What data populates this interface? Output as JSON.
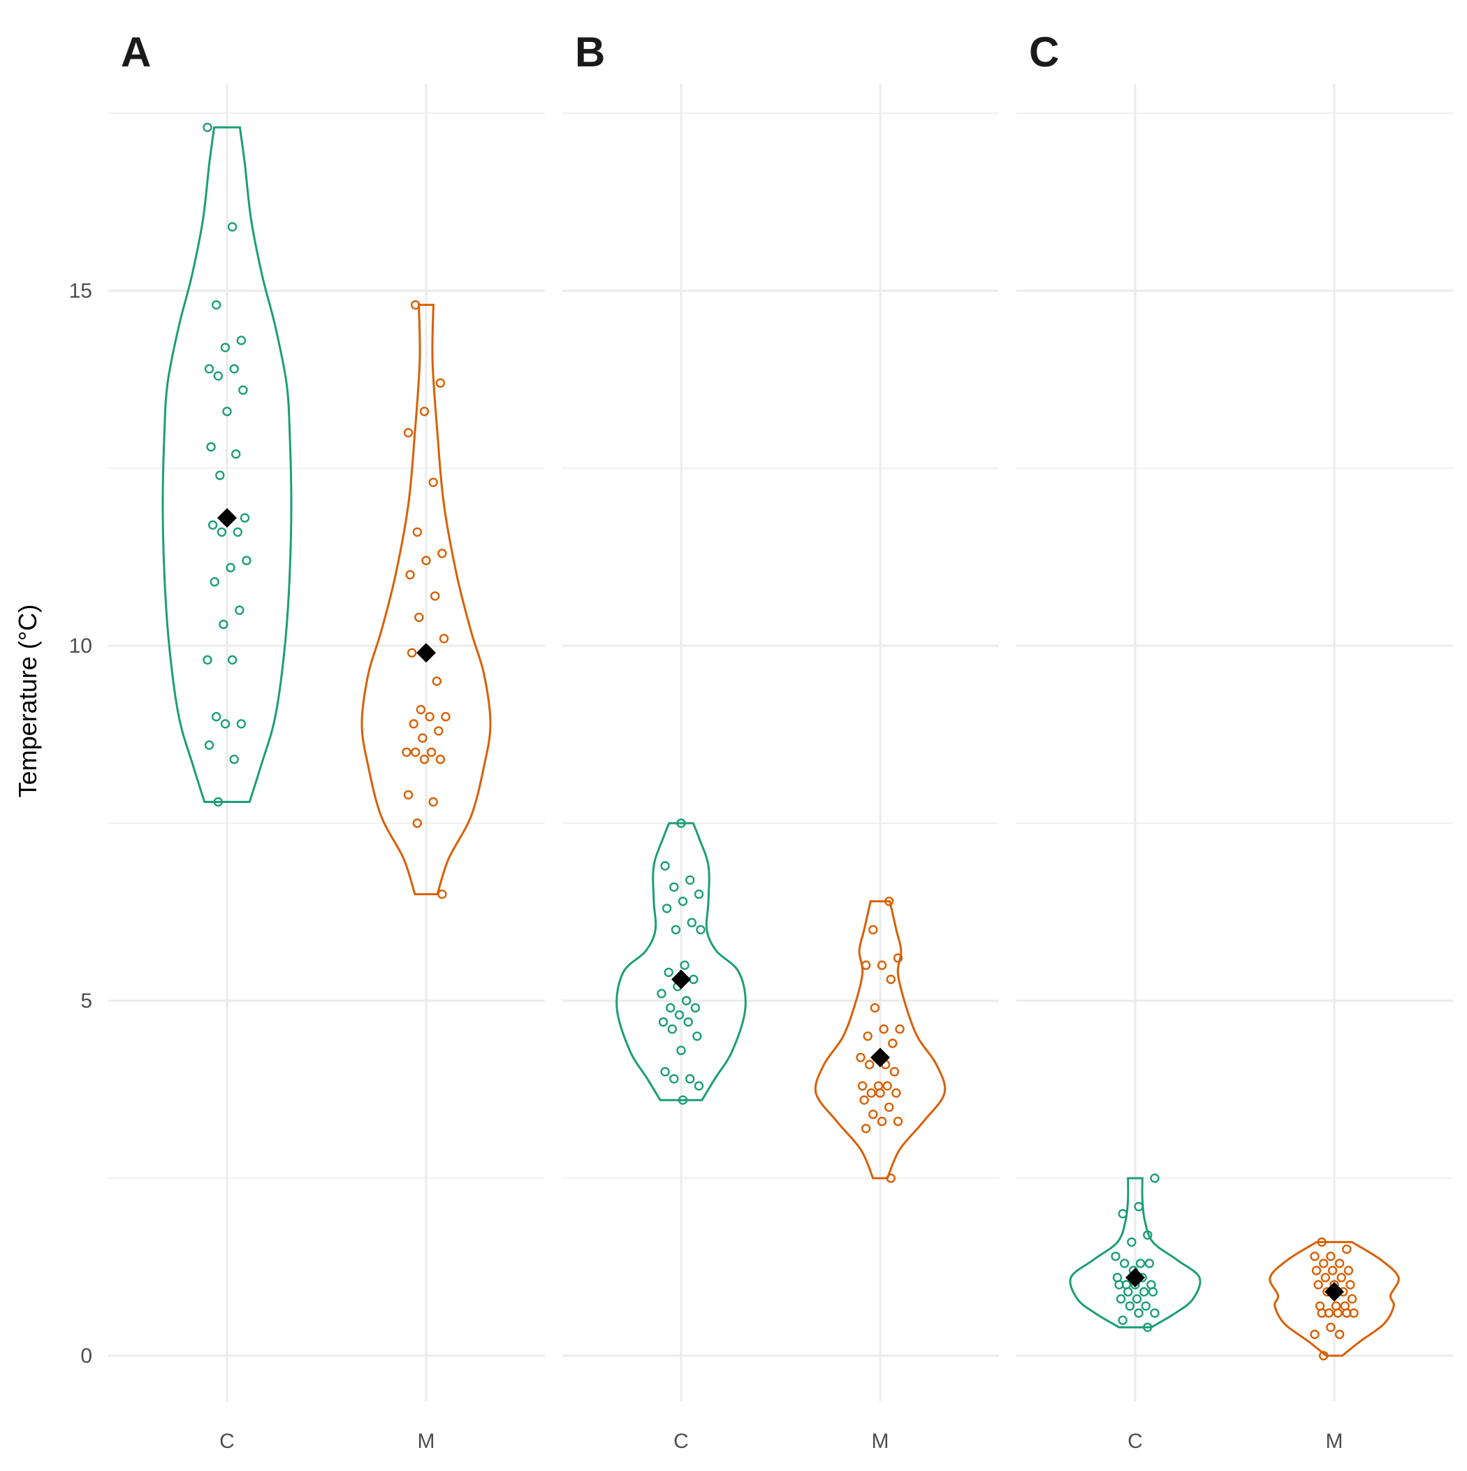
{
  "chart_data": {
    "type": "violin",
    "ylabel": "Temperature (°C)",
    "ylim": [
      -1.3,
      17.8
    ],
    "y_ticks": [
      0,
      5,
      10,
      15
    ],
    "grid": true,
    "legend": "none",
    "colors": {
      "C": "#1b9e77",
      "M": "#d95f02",
      "mean_marker": "#000000",
      "grid": "#ebebeb"
    },
    "panels": [
      {
        "tag": "A",
        "categories": [
          "C",
          "M"
        ],
        "series": [
          {
            "name": "C",
            "mean": 11.8,
            "points": [
              17.3,
              15.9,
              14.8,
              14.3,
              14.2,
              13.9,
              13.9,
              13.8,
              13.6,
              13.3,
              12.8,
              12.7,
              12.4,
              11.8,
              11.8,
              11.7,
              11.6,
              11.6,
              11.2,
              11.1,
              10.9,
              10.5,
              10.3,
              9.8,
              9.8,
              9.0,
              8.9,
              8.9,
              8.6,
              8.4,
              7.8
            ],
            "violin": [
              [
                7.8,
                0.28
              ],
              [
                8.3,
                0.42
              ],
              [
                9.0,
                0.6
              ],
              [
                10.0,
                0.72
              ],
              [
                11.0,
                0.78
              ],
              [
                12.0,
                0.8
              ],
              [
                13.0,
                0.78
              ],
              [
                13.7,
                0.74
              ],
              [
                14.5,
                0.6
              ],
              [
                15.2,
                0.44
              ],
              [
                16.0,
                0.3
              ],
              [
                16.8,
                0.22
              ],
              [
                17.3,
                0.16
              ]
            ]
          },
          {
            "name": "M",
            "mean": 9.9,
            "points": [
              14.8,
              13.7,
              13.3,
              13.0,
              12.3,
              11.6,
              11.3,
              11.2,
              11.0,
              10.7,
              10.4,
              10.1,
              9.9,
              9.9,
              9.5,
              9.1,
              9.0,
              9.0,
              8.9,
              8.8,
              8.7,
              8.5,
              8.5,
              8.5,
              8.4,
              8.4,
              7.9,
              7.8,
              7.5,
              6.5
            ],
            "violin": [
              [
                6.5,
                0.14
              ],
              [
                7.0,
                0.28
              ],
              [
                7.6,
                0.56
              ],
              [
                8.3,
                0.72
              ],
              [
                8.9,
                0.8
              ],
              [
                9.6,
                0.72
              ],
              [
                10.2,
                0.56
              ],
              [
                11.0,
                0.38
              ],
              [
                12.0,
                0.22
              ],
              [
                13.0,
                0.14
              ],
              [
                14.0,
                0.08
              ],
              [
                14.8,
                0.09
              ]
            ]
          }
        ]
      },
      {
        "tag": "B",
        "categories": [
          "C",
          "M"
        ],
        "series": [
          {
            "name": "C",
            "mean": 5.3,
            "points": [
              7.5,
              6.9,
              6.7,
              6.6,
              6.5,
              6.4,
              6.3,
              6.1,
              6.0,
              6.0,
              5.5,
              5.4,
              5.3,
              5.2,
              5.1,
              5.0,
              4.9,
              4.9,
              4.8,
              4.7,
              4.7,
              4.6,
              4.5,
              4.3,
              4.0,
              3.9,
              3.9,
              3.8,
              3.6
            ],
            "violin": [
              [
                3.6,
                0.26
              ],
              [
                3.9,
                0.42
              ],
              [
                4.3,
                0.64
              ],
              [
                4.9,
                0.8
              ],
              [
                5.4,
                0.72
              ],
              [
                5.7,
                0.44
              ],
              [
                6.0,
                0.32
              ],
              [
                6.4,
                0.34
              ],
              [
                6.9,
                0.34
              ],
              [
                7.3,
                0.22
              ],
              [
                7.5,
                0.15
              ]
            ]
          },
          {
            "name": "M",
            "mean": 4.2,
            "points": [
              6.4,
              6.0,
              5.6,
              5.5,
              5.5,
              5.3,
              4.9,
              4.6,
              4.6,
              4.5,
              4.4,
              4.2,
              4.2,
              4.1,
              4.1,
              4.0,
              3.8,
              3.8,
              3.8,
              3.7,
              3.7,
              3.7,
              3.6,
              3.5,
              3.4,
              3.3,
              3.3,
              3.2,
              2.5
            ],
            "violin": [
              [
                2.5,
                0.09
              ],
              [
                2.9,
                0.24
              ],
              [
                3.3,
                0.54
              ],
              [
                3.7,
                0.8
              ],
              [
                4.1,
                0.7
              ],
              [
                4.5,
                0.46
              ],
              [
                5.0,
                0.3
              ],
              [
                5.4,
                0.22
              ],
              [
                5.7,
                0.26
              ],
              [
                6.0,
                0.2
              ],
              [
                6.4,
                0.12
              ]
            ]
          }
        ]
      },
      {
        "tag": "C",
        "categories": [
          "C",
          "M"
        ],
        "series": [
          {
            "name": "C",
            "mean": 1.1,
            "points": [
              2.5,
              2.1,
              2.0,
              1.7,
              1.6,
              1.4,
              1.3,
              1.3,
              1.3,
              1.2,
              1.1,
              1.1,
              1.0,
              1.0,
              1.0,
              1.0,
              0.9,
              0.9,
              0.9,
              0.8,
              0.8,
              0.7,
              0.7,
              0.6,
              0.6,
              0.5,
              0.4
            ],
            "violin": [
              [
                0.4,
                0.2
              ],
              [
                0.6,
                0.5
              ],
              [
                0.8,
                0.72
              ],
              [
                1.1,
                0.8
              ],
              [
                1.35,
                0.52
              ],
              [
                1.6,
                0.22
              ],
              [
                1.9,
                0.12
              ],
              [
                2.2,
                0.09
              ],
              [
                2.5,
                0.09
              ]
            ]
          },
          {
            "name": "M",
            "mean": 0.9,
            "points": [
              1.6,
              1.5,
              1.4,
              1.4,
              1.3,
              1.3,
              1.2,
              1.2,
              1.2,
              1.1,
              1.1,
              1.0,
              1.0,
              1.0,
              0.9,
              0.9,
              0.8,
              0.7,
              0.7,
              0.7,
              0.6,
              0.6,
              0.6,
              0.6,
              0.6,
              0.4,
              0.3,
              0.3,
              0.0
            ],
            "violin": [
              [
                0.0,
                0.1
              ],
              [
                0.2,
                0.32
              ],
              [
                0.45,
                0.62
              ],
              [
                0.7,
                0.74
              ],
              [
                0.85,
                0.7
              ],
              [
                1.1,
                0.8
              ],
              [
                1.35,
                0.58
              ],
              [
                1.6,
                0.22
              ]
            ]
          }
        ]
      }
    ]
  }
}
